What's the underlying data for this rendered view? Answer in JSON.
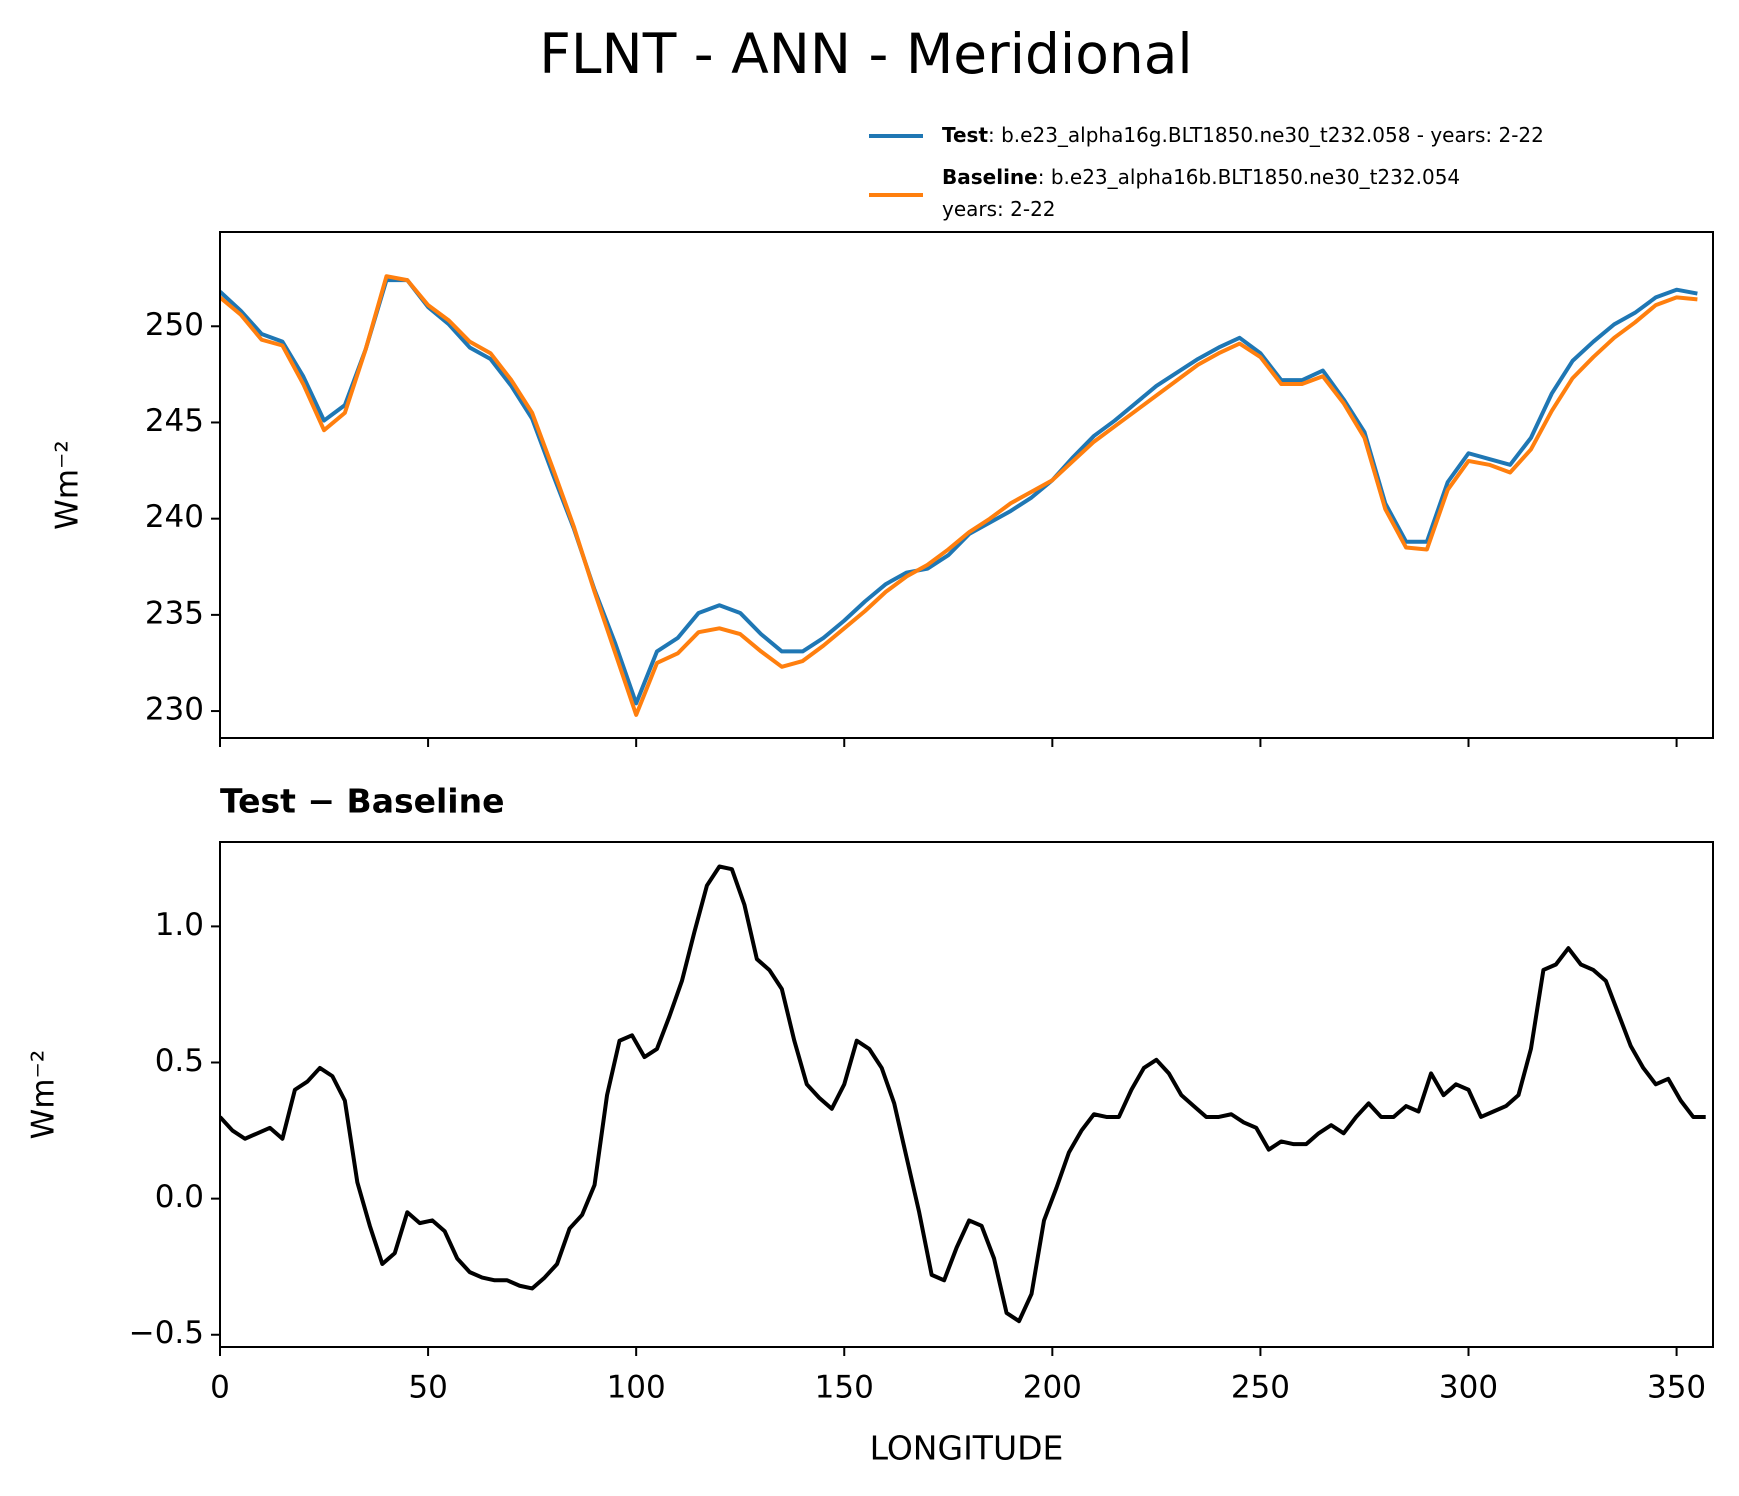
{
  "chart_data": [
    {
      "type": "line",
      "title": "FLNT - ANN - Meridional",
      "ylabel": "Wm⁻²",
      "x": [
        0,
        5,
        10,
        15,
        20,
        25,
        30,
        35,
        40,
        45,
        50,
        55,
        60,
        65,
        70,
        75,
        80,
        85,
        90,
        95,
        100,
        105,
        110,
        115,
        120,
        125,
        130,
        135,
        140,
        145,
        150,
        155,
        160,
        165,
        170,
        175,
        180,
        185,
        190,
        195,
        200,
        205,
        210,
        215,
        220,
        225,
        230,
        235,
        240,
        245,
        250,
        255,
        260,
        265,
        270,
        275,
        280,
        285,
        290,
        295,
        300,
        305,
        310,
        315,
        320,
        325,
        330,
        335,
        340,
        345,
        350,
        355
      ],
      "series": [
        {
          "name": "Test",
          "legend_text": [
            ": b.e23_alpha16g.BLT1850.ne30_t232.058 - years: 2-22"
          ],
          "color": "#1f77b4",
          "values": [
            251.8,
            250.8,
            249.6,
            249.2,
            247.4,
            245.1,
            245.9,
            248.8,
            252.4,
            252.4,
            251.0,
            250.1,
            248.9,
            248.3,
            246.9,
            245.2,
            242.3,
            239.5,
            236.3,
            233.5,
            230.4,
            233.1,
            233.8,
            235.1,
            235.5,
            235.1,
            234.0,
            233.1,
            233.1,
            233.8,
            234.7,
            235.7,
            236.6,
            237.2,
            237.4,
            238.1,
            239.2,
            239.8,
            240.4,
            241.1,
            242.0,
            243.2,
            244.3,
            245.1,
            246.0,
            246.9,
            247.6,
            248.3,
            248.9,
            249.4,
            248.6,
            247.2,
            247.2,
            247.7,
            246.2,
            244.5,
            240.8,
            238.8,
            238.8,
            241.9,
            243.4,
            243.1,
            242.8,
            244.2,
            246.5,
            248.2,
            249.2,
            250.1,
            250.7,
            251.5,
            251.9,
            251.7
          ]
        },
        {
          "name": "Baseline",
          "legend_text": [
            ": b.e23_alpha16b.BLT1850.ne30_t232.054",
            "years: 2-22"
          ],
          "color": "#ff7f0e",
          "values": [
            251.5,
            250.6,
            249.3,
            249.0,
            247.0,
            244.6,
            245.5,
            248.8,
            252.6,
            252.4,
            251.1,
            250.3,
            249.2,
            248.6,
            247.2,
            245.5,
            242.6,
            239.6,
            236.2,
            233.0,
            229.8,
            232.5,
            233.0,
            234.1,
            234.3,
            234.0,
            233.1,
            232.3,
            232.6,
            233.4,
            234.3,
            235.2,
            236.2,
            237.0,
            237.6,
            238.4,
            239.3,
            240.0,
            240.8,
            241.4,
            242.0,
            243.0,
            244.0,
            244.8,
            245.6,
            246.4,
            247.2,
            248.0,
            248.6,
            249.1,
            248.4,
            247.0,
            247.0,
            247.4,
            246.0,
            244.2,
            240.5,
            238.5,
            238.4,
            241.5,
            243.0,
            242.8,
            242.4,
            243.6,
            245.6,
            247.3,
            248.4,
            249.4,
            250.2,
            251.1,
            251.5,
            251.4
          ]
        }
      ],
      "xlim": [
        0,
        358.75
      ],
      "xticks": [
        0,
        50,
        100,
        150,
        200,
        250,
        300,
        350
      ],
      "show_xtick_labels": false,
      "ylim": [
        228.6,
        254.9
      ],
      "yticks": [
        230,
        235,
        240,
        245,
        250
      ],
      "grid": false
    },
    {
      "type": "line",
      "title": "Test − Baseline",
      "ylabel": "Wm⁻²",
      "xlabel": "LONGITUDE",
      "x": [
        0,
        3,
        6,
        9,
        12,
        15,
        18,
        21,
        24,
        27,
        30,
        33,
        36,
        39,
        42,
        45,
        48,
        51,
        54,
        57,
        60,
        63,
        66,
        69,
        72,
        75,
        78,
        81,
        84,
        87,
        90,
        93,
        96,
        99,
        102,
        105,
        108,
        111,
        114,
        117,
        120,
        123,
        126,
        129,
        132,
        135,
        138,
        141,
        144,
        147,
        150,
        153,
        156,
        159,
        162,
        165,
        168,
        171,
        174,
        177,
        180,
        183,
        186,
        189,
        192,
        195,
        198,
        201,
        204,
        207,
        210,
        213,
        216,
        219,
        222,
        225,
        228,
        231,
        234,
        237,
        240,
        243,
        246,
        249,
        252,
        255,
        258,
        261,
        264,
        267,
        270,
        273,
        276,
        279,
        282,
        285,
        288,
        291,
        294,
        297,
        300,
        303,
        306,
        309,
        312,
        315,
        318,
        321,
        324,
        327,
        330,
        333,
        336,
        339,
        342,
        345,
        348,
        351,
        354,
        357
      ],
      "series": [
        {
          "name": "Test − Baseline",
          "color": "#000000",
          "values": [
            0.3,
            0.25,
            0.22,
            0.24,
            0.26,
            0.22,
            0.4,
            0.43,
            0.48,
            0.45,
            0.36,
            0.06,
            -0.1,
            -0.24,
            -0.2,
            -0.05,
            -0.09,
            -0.08,
            -0.12,
            -0.22,
            -0.27,
            -0.29,
            -0.3,
            -0.3,
            -0.32,
            -0.33,
            -0.29,
            -0.24,
            -0.11,
            -0.06,
            0.05,
            0.38,
            0.58,
            0.6,
            0.52,
            0.55,
            0.67,
            0.8,
            0.98,
            1.15,
            1.22,
            1.21,
            1.08,
            0.88,
            0.84,
            0.77,
            0.58,
            0.42,
            0.37,
            0.33,
            0.42,
            0.58,
            0.55,
            0.48,
            0.35,
            0.15,
            -0.05,
            -0.28,
            -0.3,
            -0.18,
            -0.08,
            -0.1,
            -0.22,
            -0.42,
            -0.45,
            -0.35,
            -0.08,
            0.04,
            0.17,
            0.25,
            0.31,
            0.3,
            0.3,
            0.4,
            0.48,
            0.51,
            0.46,
            0.38,
            0.34,
            0.3,
            0.3,
            0.31,
            0.28,
            0.26,
            0.18,
            0.21,
            0.2,
            0.2,
            0.24,
            0.27,
            0.24,
            0.3,
            0.35,
            0.3,
            0.3,
            0.34,
            0.32,
            0.46,
            0.38,
            0.42,
            0.4,
            0.3,
            0.32,
            0.34,
            0.38,
            0.55,
            0.84,
            0.86,
            0.92,
            0.86,
            0.84,
            0.8,
            0.68,
            0.56,
            0.48,
            0.42,
            0.44,
            0.36,
            0.3,
            0.3
          ]
        }
      ],
      "xlim": [
        0,
        358.75
      ],
      "xticks": [
        0,
        50,
        100,
        150,
        200,
        250,
        300,
        350
      ],
      "show_xtick_labels": true,
      "ylim": [
        -0.545,
        1.31
      ],
      "yticks": [
        {
          "value": -0.5,
          "label": "−0.5"
        },
        {
          "value": 0,
          "label": "0.0"
        },
        0.5,
        {
          "value": 1,
          "label": "1.0"
        }
      ],
      "grid": false
    }
  ]
}
